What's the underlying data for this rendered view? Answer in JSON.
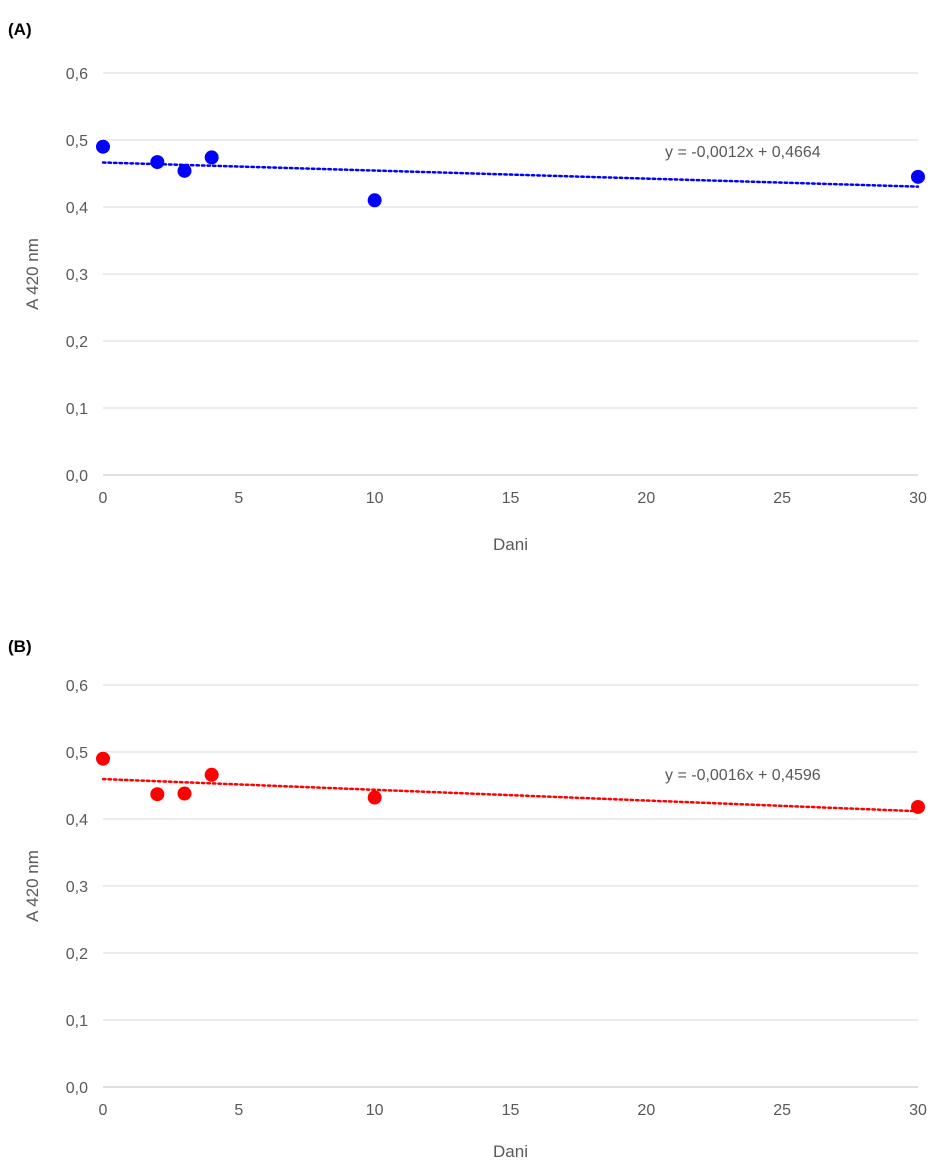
{
  "panels": [
    {
      "label": "(A)"
    },
    {
      "label": "(B)"
    }
  ],
  "chart_data": [
    {
      "type": "scatter",
      "panel_label": "(A)",
      "xlabel": "Dani",
      "ylabel": "A 420 nm",
      "xlim": [
        0,
        30
      ],
      "ylim": [
        0,
        0.6
      ],
      "xticks": [
        0,
        5,
        10,
        15,
        20,
        25,
        30
      ],
      "yticks": [
        0.0,
        0.1,
        0.2,
        0.3,
        0.4,
        0.5,
        0.6
      ],
      "xtick_labels": [
        "0",
        "5",
        "10",
        "15",
        "20",
        "25",
        "30"
      ],
      "ytick_labels": [
        "0,0",
        "0,1",
        "0,2",
        "0,3",
        "0,4",
        "0,5",
        "0,6"
      ],
      "grid": "horizontal",
      "series": [
        {
          "color": "#0000ff",
          "x": [
            0,
            2,
            3,
            4,
            10,
            30
          ],
          "y": [
            0.49,
            0.467,
            0.454,
            0.474,
            0.41,
            0.445
          ],
          "trendline": {
            "slope": -0.0012,
            "intercept": 0.4664,
            "style": "dotted",
            "equation": "y = -0,0012x + 0,4664"
          }
        }
      ]
    },
    {
      "type": "scatter",
      "panel_label": "(B)",
      "xlabel": "Dani",
      "ylabel": "A 420 nm",
      "xlim": [
        0,
        30
      ],
      "ylim": [
        0,
        0.6
      ],
      "xticks": [
        0,
        5,
        10,
        15,
        20,
        25,
        30
      ],
      "yticks": [
        0.0,
        0.1,
        0.2,
        0.3,
        0.4,
        0.5,
        0.6
      ],
      "xtick_labels": [
        "0",
        "5",
        "10",
        "15",
        "20",
        "25",
        "30"
      ],
      "ytick_labels": [
        "0,0",
        "0,1",
        "0,2",
        "0,3",
        "0,4",
        "0,5",
        "0,6"
      ],
      "grid": "horizontal",
      "series": [
        {
          "color": "#ff0000",
          "x": [
            0,
            2,
            3,
            4,
            10,
            30
          ],
          "y": [
            0.49,
            0.437,
            0.438,
            0.466,
            0.432,
            0.418
          ],
          "trendline": {
            "slope": -0.0016,
            "intercept": 0.4596,
            "style": "dotted",
            "equation": "y = -0,0016x + 0,4596"
          }
        }
      ]
    }
  ]
}
